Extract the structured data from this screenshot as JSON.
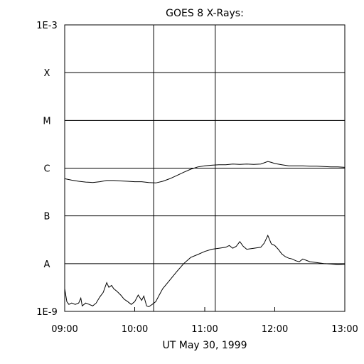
{
  "chart_data": {
    "type": "line",
    "title": "GOES 8 X-Rays:",
    "xlabel": "UT May 30, 1999",
    "ylabel": "",
    "x_ticks": [
      "09:00",
      "10:00",
      "11:00",
      "12:00",
      "13:00"
    ],
    "x_tick_hours": [
      9,
      10,
      11,
      12,
      13
    ],
    "xlim": [
      9,
      13
    ],
    "y_scale": "log",
    "ylim": [
      1e-09,
      0.001
    ],
    "y_ticks": [
      {
        "label": "1E-3",
        "value": 0.001
      },
      {
        "label": "X",
        "value": 0.0001
      },
      {
        "label": "M",
        "value": 1e-05
      },
      {
        "label": "C",
        "value": 1e-06
      },
      {
        "label": "B",
        "value": 1e-07
      },
      {
        "label": "A",
        "value": 1e-08
      },
      {
        "label": "1E-9",
        "value": 1e-09
      }
    ],
    "grid": "horizontal at each tick",
    "vlines_hours": [
      10.27,
      11.15
    ],
    "series": [
      {
        "x": [
          9.0,
          9.1,
          9.2,
          9.3,
          9.4,
          9.5,
          9.6,
          9.7,
          9.8,
          9.9,
          10.0,
          10.1,
          10.2,
          10.3,
          10.4,
          10.5,
          10.6,
          10.7,
          10.8,
          10.9,
          11.0,
          11.1,
          11.2,
          11.3,
          11.4,
          11.5,
          11.6,
          11.7,
          11.8,
          11.9,
          11.95,
          12.0,
          12.1,
          12.2,
          12.3,
          12.4,
          12.5,
          12.6,
          12.7,
          12.8,
          12.9,
          13.0
        ],
        "y": [
          6e-07,
          5.6e-07,
          5.3e-07,
          5.1e-07,
          5e-07,
          5.2e-07,
          5.5e-07,
          5.5e-07,
          5.4e-07,
          5.3e-07,
          5.2e-07,
          5.2e-07,
          5e-07,
          4.9e-07,
          5.3e-07,
          6e-07,
          7e-07,
          8.2e-07,
          9.5e-07,
          1.06e-06,
          1.12e-06,
          1.15e-06,
          1.18e-06,
          1.18e-06,
          1.22e-06,
          1.2e-06,
          1.22e-06,
          1.2e-06,
          1.22e-06,
          1.38e-06,
          1.32e-06,
          1.25e-06,
          1.18e-06,
          1.12e-06,
          1.12e-06,
          1.12e-06,
          1.1e-06,
          1.1e-06,
          1.08e-06,
          1.06e-06,
          1.06e-06,
          1.04e-06
        ]
      },
      {
        "x": [
          9.0,
          9.03,
          9.06,
          9.1,
          9.15,
          9.2,
          9.23,
          9.25,
          9.3,
          9.35,
          9.4,
          9.45,
          9.5,
          9.55,
          9.6,
          9.63,
          9.67,
          9.7,
          9.75,
          9.8,
          9.85,
          9.9,
          9.95,
          10.0,
          10.05,
          10.1,
          10.13,
          10.17,
          10.2,
          10.25,
          10.3,
          10.35,
          10.4,
          10.5,
          10.6,
          10.7,
          10.8,
          10.9,
          11.0,
          11.1,
          11.2,
          11.3,
          11.35,
          11.4,
          11.45,
          11.5,
          11.55,
          11.6,
          11.7,
          11.8,
          11.85,
          11.9,
          11.95,
          12.0,
          12.05,
          12.1,
          12.15,
          12.2,
          12.25,
          12.3,
          12.35,
          12.4,
          12.5,
          12.6,
          12.7,
          12.8,
          12.9,
          13.0
        ],
        "y": [
          3e-09,
          1.6e-09,
          1.4e-09,
          1.5e-09,
          1.4e-09,
          1.5e-09,
          1.9e-09,
          1.3e-09,
          1.5e-09,
          1.4e-09,
          1.3e-09,
          1.5e-09,
          2e-09,
          2.5e-09,
          4e-09,
          3.2e-09,
          3.5e-09,
          3e-09,
          2.6e-09,
          2.2e-09,
          1.8e-09,
          1.6e-09,
          1.4e-09,
          1.6e-09,
          2.2e-09,
          1.7e-09,
          2.1e-09,
          1.3e-09,
          1.25e-09,
          1.4e-09,
          1.6e-09,
          2.2e-09,
          3e-09,
          4.5e-09,
          6.8e-09,
          1e-08,
          1.35e-08,
          1.55e-08,
          1.8e-08,
          2e-08,
          2.1e-08,
          2.2e-08,
          2.4e-08,
          2.1e-08,
          2.3e-08,
          2.9e-08,
          2.3e-08,
          2e-08,
          2.1e-08,
          2.2e-08,
          2.7e-08,
          3.9e-08,
          2.6e-08,
          2.4e-08,
          2e-08,
          1.6e-08,
          1.4e-08,
          1.3e-08,
          1.25e-08,
          1.15e-08,
          1.1e-08,
          1.25e-08,
          1.1e-08,
          1.05e-08,
          1e-08,
          9.8e-09,
          9.5e-09,
          9.7e-09
        ]
      }
    ]
  }
}
